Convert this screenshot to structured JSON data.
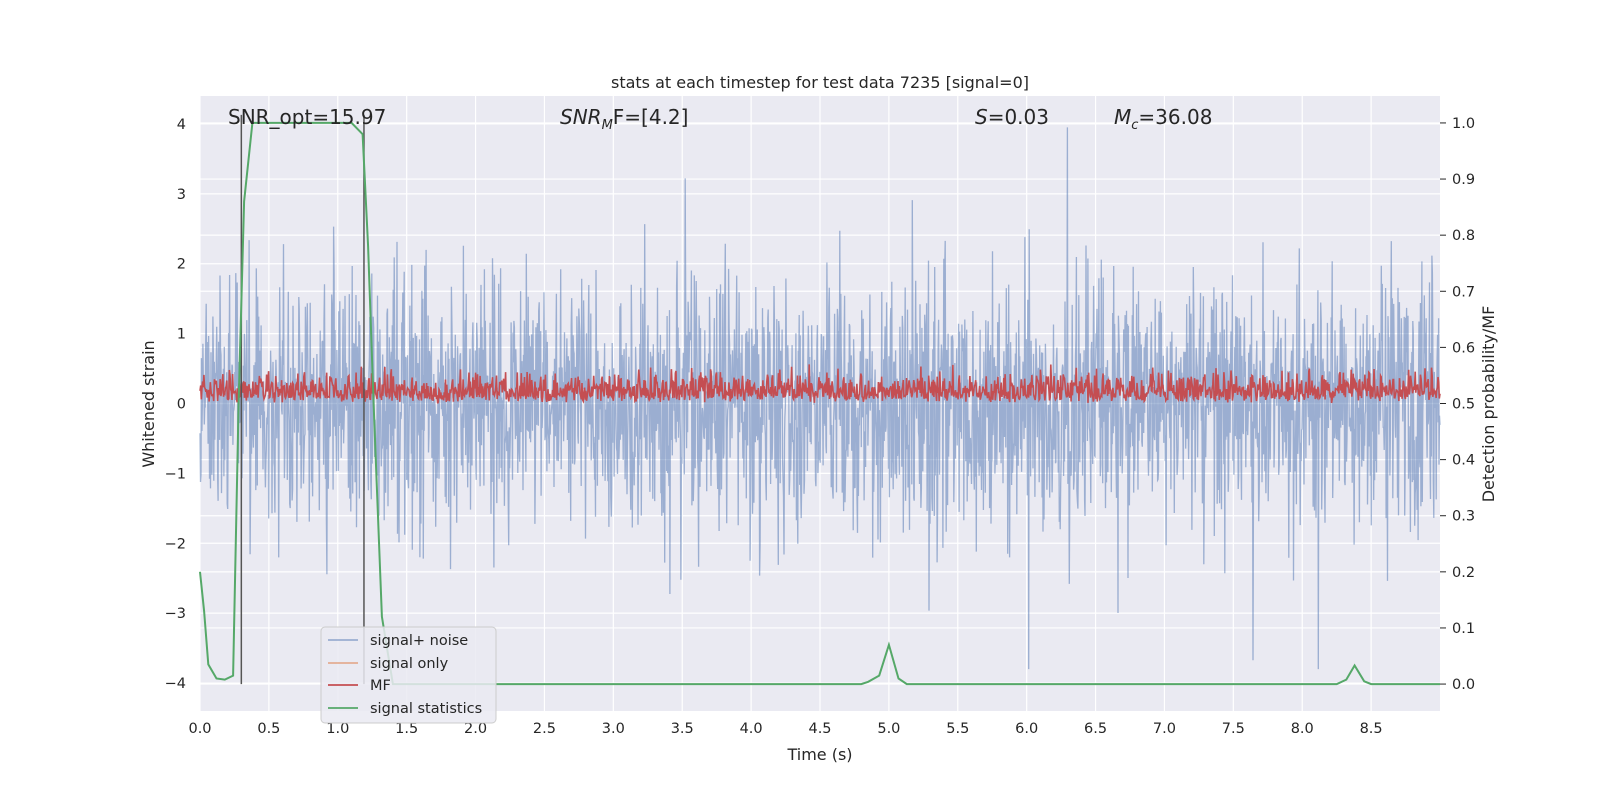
{
  "chart_data": {
    "type": "line",
    "title": "stats at each timestep for test data 7235 [signal=0]",
    "xlabel": "Time (s)",
    "ylabel": "Whitened strain",
    "y2label": "Detection probability/MF",
    "xlim": [
      0.0,
      9.0
    ],
    "ylim": [
      -4.4,
      4.4
    ],
    "y2lim": [
      -0.048,
      1.048
    ],
    "xticks": [
      "0.0",
      "0.5",
      "1.0",
      "1.5",
      "2.0",
      "2.5",
      "3.0",
      "3.5",
      "4.0",
      "4.5",
      "5.0",
      "5.5",
      "6.0",
      "6.5",
      "7.0",
      "7.5",
      "8.0",
      "8.5"
    ],
    "xtick_values": [
      0.0,
      0.5,
      1.0,
      1.5,
      2.0,
      2.5,
      3.0,
      3.5,
      4.0,
      4.5,
      5.0,
      5.5,
      6.0,
      6.5,
      7.0,
      7.5,
      8.0,
      8.5
    ],
    "yticks": [
      "−4",
      "−3",
      "−2",
      "−1",
      "0",
      "1",
      "2",
      "3",
      "4"
    ],
    "ytick_values": [
      -4,
      -3,
      -2,
      -1,
      0,
      1,
      2,
      3,
      4
    ],
    "y2ticks": [
      "0.0",
      "0.1",
      "0.2",
      "0.3",
      "0.4",
      "0.5",
      "0.6",
      "0.7",
      "0.8",
      "0.9",
      "1.0"
    ],
    "y2tick_values": [
      0.0,
      0.1,
      0.2,
      0.3,
      0.4,
      0.5,
      0.6,
      0.7,
      0.8,
      0.9,
      1.0
    ],
    "annotations": {
      "snr_opt": "SNR_opt=15.97",
      "snr_mf_prefix": "SNR",
      "snr_mf_sub": "M",
      "snr_mf_rest": "F=[4.2]",
      "s_label": "S",
      "s_rest": "=0.03",
      "mc_label": "M",
      "mc_sub": "c",
      "mc_rest": "=36.08"
    },
    "vlines_s": [
      0.3,
      1.19
    ],
    "legend": {
      "placement": "lower-left",
      "entries": [
        {
          "label": "signal+ noise",
          "color": "#4c72b0"
        },
        {
          "label": "signal only",
          "color": "#dd8452"
        },
        {
          "label": "MF",
          "color": "#c44e52"
        },
        {
          "label": "signal statistics",
          "color": "#55a868"
        }
      ]
    },
    "series": [
      {
        "name": "signal statistics",
        "axis": "right",
        "color": "#55a868",
        "x": [
          0.0,
          0.03,
          0.06,
          0.12,
          0.18,
          0.24,
          0.28,
          0.32,
          0.38,
          0.45,
          0.6,
          0.8,
          1.0,
          1.1,
          1.18,
          1.22,
          1.26,
          1.32,
          1.4,
          2.0,
          3.0,
          4.0,
          4.8,
          4.85,
          4.93,
          5.0,
          5.07,
          5.13,
          5.2,
          6.0,
          7.0,
          8.0,
          8.25,
          8.32,
          8.38,
          8.45,
          8.5,
          8.7,
          9.0
        ],
        "y": [
          0.2,
          0.13,
          0.035,
          0.01,
          0.008,
          0.015,
          0.5,
          0.86,
          1.0,
          1.0,
          1.0,
          1.0,
          1.0,
          1.0,
          0.98,
          0.78,
          0.5,
          0.12,
          0.0,
          0.0,
          0.0,
          0.0,
          0.0,
          0.004,
          0.015,
          0.07,
          0.01,
          0.0,
          0.0,
          0.0,
          0.0,
          0.0,
          0.0,
          0.008,
          0.033,
          0.005,
          0.0,
          0.0,
          0.0
        ]
      },
      {
        "name": "signal+ noise",
        "axis": "left",
        "color": "#4c72b0",
        "description_range": [
          -3.8,
          4.0
        ]
      },
      {
        "name": "MF",
        "axis": "right",
        "color": "#c44e52",
        "description_range": [
          0.5,
          0.58
        ]
      },
      {
        "name": "signal only",
        "axis": "left",
        "color": "#dd8452",
        "values": []
      }
    ]
  }
}
